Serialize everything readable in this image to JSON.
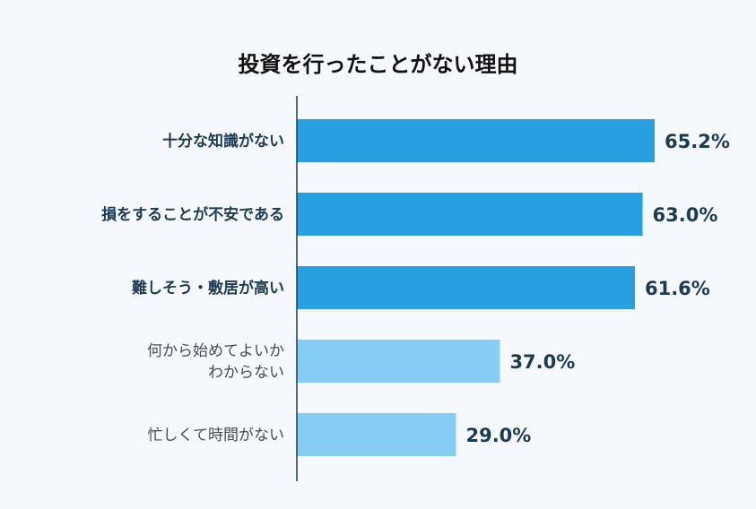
{
  "chart_data": {
    "type": "bar",
    "orientation": "horizontal",
    "title": "投資を行ったことがない理由",
    "categories": [
      [
        "十分な知識がない"
      ],
      [
        "損をすることが不安である"
      ],
      [
        "難しそう・敷居が高い"
      ],
      [
        "何から始めてよいか",
        "わからない"
      ],
      [
        "忙しくて時間がない"
      ]
    ],
    "values": [
      65.2,
      63.0,
      61.6,
      37.0,
      29.0
    ],
    "value_labels": [
      "65.2%",
      "63.0%",
      "61.6%",
      "37.0%",
      "29.0%"
    ],
    "highlight": [
      true,
      true,
      true,
      false,
      false
    ],
    "colors": {
      "highlight": "#279fe0",
      "normal": "#86cdf5",
      "axis": "#1c3a52",
      "text": "#1c3a52"
    },
    "xlim": [
      0,
      100
    ],
    "grid": false,
    "legend": "none"
  }
}
